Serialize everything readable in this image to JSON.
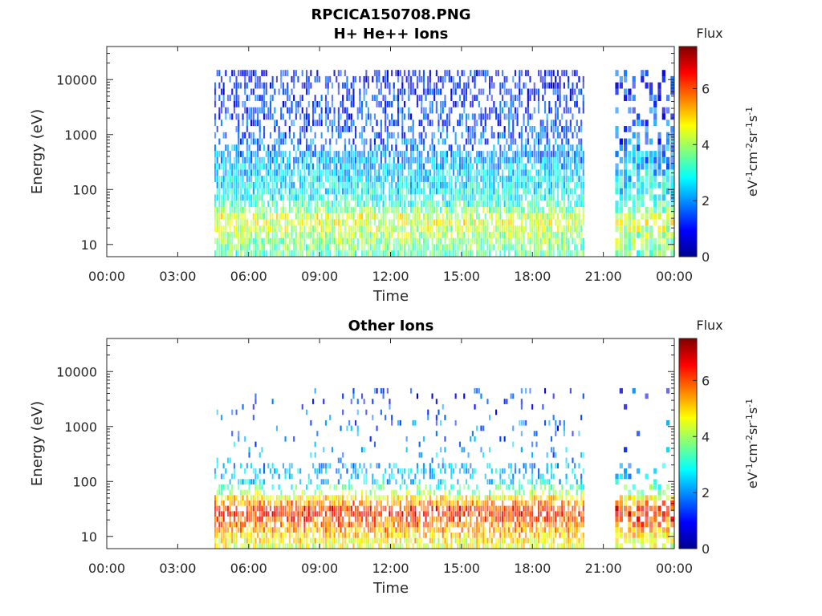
{
  "figure_title": "RPCICA150708.PNG",
  "colors": {
    "colormap": "jet",
    "axes": "#262626",
    "background": "#ffffff"
  },
  "chart_data": [
    {
      "type": "heatmap",
      "title": "H+ He++ Ions",
      "xlabel": "Time",
      "ylabel": "Energy (eV)",
      "x_ticks": [
        "00:00",
        "03:00",
        "06:00",
        "09:00",
        "12:00",
        "15:00",
        "18:00",
        "21:00",
        "00:00"
      ],
      "xlim_hours": [
        0,
        24
      ],
      "y_scale": "log",
      "ylim": [
        6,
        40000
      ],
      "y_ticks": [
        {
          "value": 10,
          "label": "10"
        },
        {
          "value": 100,
          "label": "100"
        },
        {
          "value": 1000,
          "label": "1000"
        },
        {
          "value": 10000,
          "label": "10000"
        }
      ],
      "data_intervals_hours": [
        [
          4.55,
          20.15
        ],
        [
          21.5,
          23.9
        ]
      ],
      "flux_profile": [
        {
          "energy_ev": 7,
          "flux": 3.5
        },
        {
          "energy_ev": 15,
          "flux": 4.0
        },
        {
          "energy_ev": 30,
          "flux": 4.5
        },
        {
          "energy_ev": 60,
          "flux": 3.0
        },
        {
          "energy_ev": 200,
          "flux": 2.5
        },
        {
          "energy_ev": 1000,
          "flux": 1.5
        },
        {
          "energy_ev": 5000,
          "flux": 1.2
        },
        {
          "energy_ev": 15000,
          "flux": 1.0
        }
      ],
      "colorbar": {
        "title": "Flux",
        "label": "eV-1cm-2sr-1s-1",
        "range": [
          0,
          7.5
        ],
        "ticks": [
          "0",
          "2",
          "4",
          "6"
        ]
      }
    },
    {
      "type": "heatmap",
      "title": "Other Ions",
      "xlabel": "Time",
      "ylabel": "Energy (eV)",
      "x_ticks": [
        "00:00",
        "03:00",
        "06:00",
        "09:00",
        "12:00",
        "15:00",
        "18:00",
        "21:00",
        "00:00"
      ],
      "xlim_hours": [
        0,
        24
      ],
      "y_scale": "log",
      "ylim": [
        6,
        40000
      ],
      "y_ticks": [
        {
          "value": 10,
          "label": "10"
        },
        {
          "value": 100,
          "label": "100"
        },
        {
          "value": 1000,
          "label": "1000"
        },
        {
          "value": 10000,
          "label": "10000"
        }
      ],
      "data_intervals_hours": [
        [
          4.55,
          20.15
        ],
        [
          21.5,
          23.9
        ]
      ],
      "flux_profile": [
        {
          "energy_ev": 7,
          "flux": 4.5
        },
        {
          "energy_ev": 15,
          "flux": 5.5
        },
        {
          "energy_ev": 30,
          "flux": 6.5
        },
        {
          "energy_ev": 100,
          "flux": 2.5
        },
        {
          "energy_ev": 500,
          "flux": 1.8
        },
        {
          "energy_ev": 5000,
          "flux": 1.2
        }
      ],
      "colorbar": {
        "title": "Flux",
        "label": "eV-1cm-2sr-1s-1",
        "range": [
          0,
          7.5
        ],
        "ticks": [
          "0",
          "2",
          "4",
          "6"
        ]
      }
    }
  ]
}
